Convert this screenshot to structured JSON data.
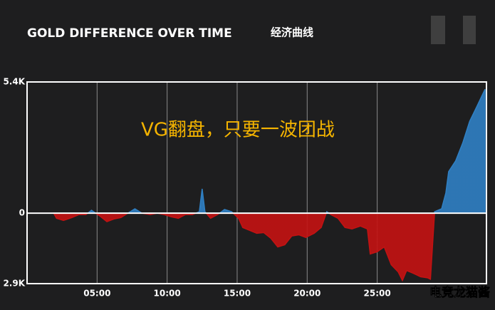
{
  "chart_data": {
    "type": "area",
    "title": "GOLD DIFFERENCE OVER TIME",
    "subtitle": "经济曲线",
    "annotation": "VG翻盘，只要一波团战",
    "watermark": "电竞龙猫酱",
    "positive_color": "#2f80c4",
    "negative_color": "#c41212",
    "x": [
      1.9,
      2.1,
      2.6,
      3.2,
      3.7,
      4.2,
      4.6,
      4.9,
      5.2,
      5.7,
      6.2,
      6.7,
      7.2,
      7.7,
      8.2,
      8.8,
      9.3,
      9.8,
      10.3,
      10.8,
      11.3,
      11.8,
      12.3,
      12.5,
      12.7,
      13.1,
      13.6,
      14.1,
      14.6,
      15.1,
      15.4,
      15.9,
      16.4,
      16.9,
      17.4,
      17.9,
      18.4,
      18.9,
      19.4,
      19.9,
      20.5,
      21.0,
      21.4,
      21.7,
      22.2,
      22.7,
      23.2,
      23.8,
      24.3,
      24.5,
      25.0,
      25.5,
      26.0,
      26.5,
      26.8,
      27.1,
      27.6,
      28.1,
      28.6,
      28.8,
      29.1,
      29.6,
      29.9,
      30.1,
      30.6,
      31.1,
      31.6,
      32.1,
      32.7
    ],
    "series": [
      {
        "values": [
          0,
          -210,
          -300,
          -180,
          -60,
          -60,
          120,
          0,
          -120,
          -350,
          -240,
          -180,
          0,
          180,
          0,
          -60,
          0,
          -60,
          -150,
          -210,
          -60,
          -60,
          60,
          1000,
          60,
          -210,
          -60,
          150,
          60,
          -210,
          -590,
          -710,
          -830,
          -800,
          -1030,
          -1390,
          -1300,
          -940,
          -890,
          -1000,
          -830,
          -590,
          60,
          -60,
          -210,
          -590,
          -650,
          -530,
          -650,
          -1680,
          -1590,
          -1390,
          -2120,
          -2420,
          -2770,
          -2360,
          -2480,
          -2620,
          -2660,
          -2720,
          60,
          180,
          830,
          1710,
          2150,
          2880,
          3780,
          4370,
          5100
        ]
      }
    ],
    "xlim": [
      0,
      32.8
    ],
    "xticks": [
      {
        "value": 5,
        "label": "05:00"
      },
      {
        "value": 10,
        "label": "10:00"
      },
      {
        "value": 15,
        "label": "15:00"
      },
      {
        "value": 20,
        "label": "20:00"
      },
      {
        "value": 25,
        "label": "25:00"
      }
    ],
    "ylim": [
      -2900,
      5400
    ],
    "yticks": [
      {
        "value": 5400,
        "label": "5.4K"
      },
      0,
      {
        "value": -2900,
        "label": "2.9K"
      }
    ],
    "grid": true
  }
}
